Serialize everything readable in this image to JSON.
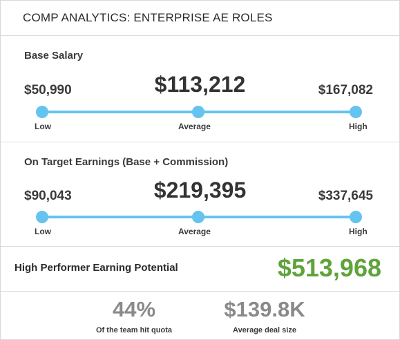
{
  "header": {
    "title": "COMP ANALYTICS: ENTERPRISE AE ROLES"
  },
  "base_salary": {
    "label": "Base Salary",
    "low": "$50,990",
    "average": "$113,212",
    "high": "$167,082",
    "low_label": "Low",
    "average_label": "Average",
    "high_label": "High"
  },
  "ote": {
    "label": "On Target Earnings (Base + Commission)",
    "low": "$90,043",
    "average": "$219,395",
    "high": "$337,645",
    "low_label": "Low",
    "average_label": "Average",
    "high_label": "High"
  },
  "high_performer": {
    "label": "High Performer Earning Potential",
    "value": "$513,968"
  },
  "stats": [
    {
      "value": "44%",
      "caption": "Of the team hit quota"
    },
    {
      "value": "$139.8K",
      "caption": "Average deal size"
    }
  ],
  "colors": {
    "slider": "#65c3ef",
    "high_performer_value": "#5fa33b",
    "stat_value": "#8a8a8a"
  }
}
